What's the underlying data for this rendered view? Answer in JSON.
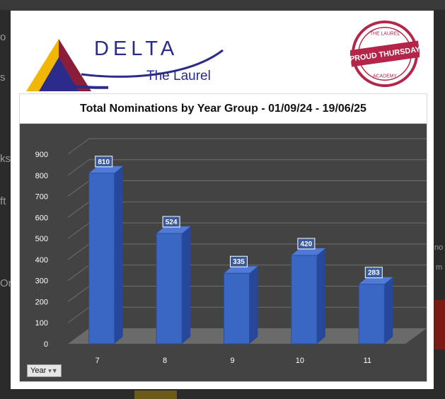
{
  "logo": {
    "brand": "DELTA",
    "sub": "The Laurel",
    "stamp_main": "PROUD THURSDAY",
    "stamp_top": "THE LAUREL",
    "stamp_bottom": "ACADEMY"
  },
  "background": {
    "snippets": [
      "o",
      "s",
      "ks",
      "ft",
      "Or",
      "no",
      "m"
    ]
  },
  "filter": {
    "label": "Year"
  },
  "chart_data": {
    "type": "bar",
    "title": "Total Nominations by Year Group - 01/09/24 - 19/06/25",
    "categories": [
      "7",
      "8",
      "9",
      "10",
      "11"
    ],
    "values": [
      810,
      524,
      335,
      420,
      283
    ],
    "ylim": [
      0,
      900
    ],
    "yticks": [
      0,
      100,
      200,
      300,
      400,
      500,
      600,
      700,
      800,
      900
    ],
    "grid": true,
    "bar_color": "#3a66c4",
    "background_color": "#434343"
  }
}
